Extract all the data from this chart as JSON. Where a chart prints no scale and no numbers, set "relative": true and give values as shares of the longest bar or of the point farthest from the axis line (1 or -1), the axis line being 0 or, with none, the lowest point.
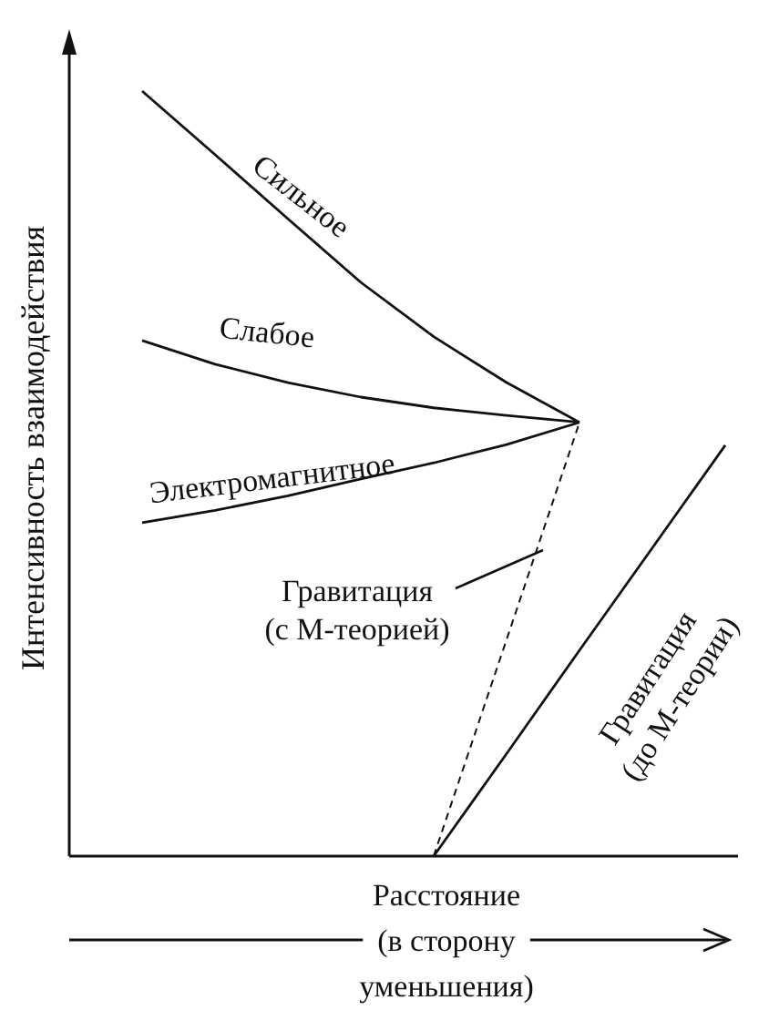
{
  "chart_data": {
    "type": "line",
    "relative": true,
    "xlabel": "Расстояние (в сторону уменьшения)",
    "ylabel": "Интенсивность взаимодействия",
    "categories": [
      null,
      null,
      null,
      null,
      null,
      null,
      null,
      null,
      null
    ],
    "series": [
      {
        "name": "Сильное",
        "color": "#111111",
        "line_style": "solid",
        "values": [
          1,
          0.917,
          0.833,
          0.75,
          0.679,
          0.619,
          0.567,
          null,
          null
        ]
      },
      {
        "name": "Слабое",
        "color": "#111111",
        "line_style": "solid",
        "values": [
          0.674,
          0.643,
          0.619,
          0.6,
          0.586,
          0.576,
          0.567,
          null,
          null
        ]
      },
      {
        "name": "Электромагнитное",
        "color": "#111111",
        "line_style": "solid",
        "values": [
          0.436,
          0.452,
          0.471,
          0.493,
          0.514,
          0.538,
          0.567,
          null,
          null
        ]
      },
      {
        "name": "Гравитация (с М-теорией)",
        "color": "#111111",
        "line_style": "dashed",
        "values": [
          null,
          null,
          null,
          null,
          0,
          0.283,
          0.567,
          null,
          null
        ]
      },
      {
        "name": "Гравитация (до М-теории)",
        "color": "#111111",
        "line_style": "solid",
        "values": [
          null,
          null,
          null,
          null,
          0,
          0.134,
          0.269,
          0.403,
          0.537
        ]
      }
    ]
  }
}
